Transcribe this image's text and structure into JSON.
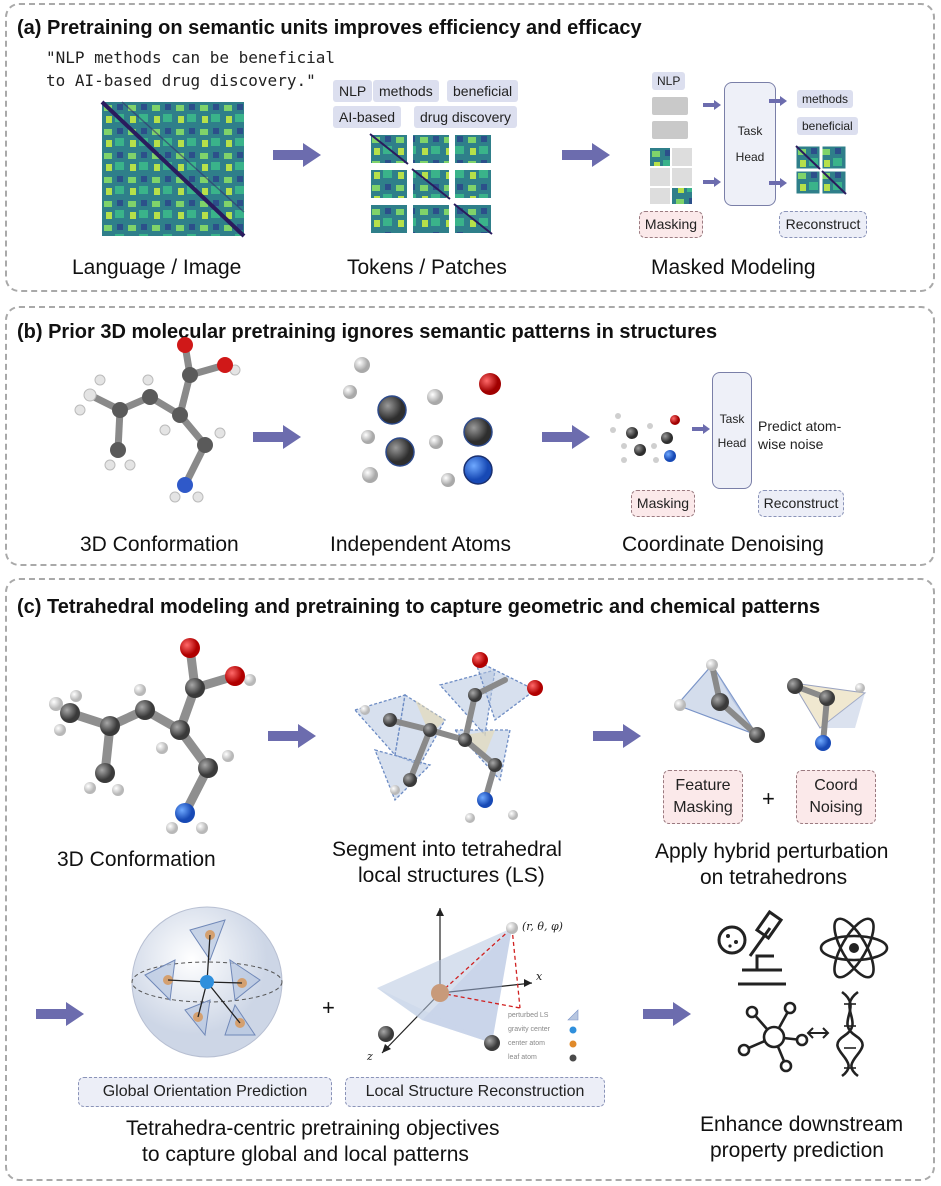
{
  "panel_a": {
    "title": "(a) Pretraining on semantic units improves efficiency and efficacy",
    "sentence_line1": "\"NLP methods can be beneficial",
    "sentence_line2": "to AI-based drug discovery.\"",
    "tokens": [
      "NLP",
      "methods",
      "beneficial",
      "AI-based",
      "drug discovery"
    ],
    "masked_token": "NLP",
    "task_head": [
      "Task",
      "Head"
    ],
    "reconstructed_tokens": [
      "methods",
      "beneficial"
    ],
    "masking_label": "Masking",
    "reconstruct_label": "Reconstruct",
    "labels": [
      "Language / Image",
      "Tokens / Patches",
      "Masked Modeling"
    ]
  },
  "panel_b": {
    "title": "(b) Prior 3D molecular pretraining ignores semantic patterns in structures",
    "task_head": [
      "Task",
      "Head"
    ],
    "predict_line1": "Predict atom-",
    "predict_line2": "wise noise",
    "masking_label": "Masking",
    "reconstruct_label": "Reconstruct",
    "labels": [
      "3D Conformation",
      "Independent Atoms",
      "Coordinate Denoising"
    ]
  },
  "panel_c": {
    "title": "(c) Tetrahedral modeling and pretraining to capture geometric and chemical patterns",
    "labels": {
      "conformation": "3D Conformation",
      "segment_line1": "Segment into tetrahedral",
      "segment_line2": "local structures (LS)",
      "perturb_line1": "Apply hybrid perturbation",
      "perturb_line2": "on tetrahedrons",
      "objectives_line1": "Tetrahedra-centric pretraining objectives",
      "objectives_line2": "to capture global and local patterns",
      "downstream_line1": "Enhance downstream",
      "downstream_line2": "property prediction"
    },
    "feature_masking": [
      "Feature",
      "Masking"
    ],
    "coord_noising": [
      "Coord",
      "Noising"
    ],
    "plus": "+",
    "global_box": "Global Orientation Prediction",
    "local_box": "Local Structure Reconstruction",
    "coord_label": "(r, θ, φ)",
    "axis_x": "x",
    "axis_z": "z",
    "legend": [
      "perturbed LS",
      "gravity center",
      "center atom",
      "leaf atom"
    ]
  },
  "colors": {
    "arrow": "#6c6cae",
    "carbon": "#555555",
    "oxygen": "#d01818",
    "nitrogen": "#2f59c9",
    "hydrogen": "#e6e6e6",
    "tetra": "#b7c6e0"
  }
}
